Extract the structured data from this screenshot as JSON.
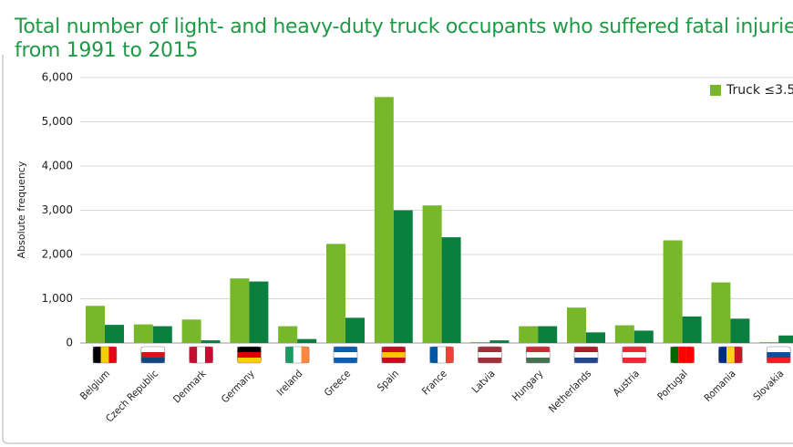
{
  "chart_data": {
    "type": "bar",
    "title": [
      "Total number of light- and heavy-duty truck occupants who suffered fatal injuries in E",
      "from 1991 to 2015"
    ],
    "y_label": "Absolute frequency",
    "categories": [
      "Belgium",
      "Czech Republic",
      "Denmark",
      "Germany",
      "Ireland",
      "Greece",
      "Spain",
      "France",
      "Latvia",
      "Hungary",
      "Netherlands",
      "Austria",
      "Portugal",
      "Romania",
      "Slovakia"
    ],
    "series": [
      {
        "name": "Truck ≤3.5",
        "color": "#76b82a",
        "values": [
          840,
          420,
          530,
          1460,
          380,
          2240,
          5560,
          3110,
          20,
          380,
          800,
          400,
          2320,
          1370,
          20
        ]
      },
      {
        "color": "#0b7f3d",
        "values": [
          410,
          380,
          60,
          1390,
          90,
          570,
          3000,
          2390,
          60,
          380,
          240,
          280,
          600,
          550,
          170
        ]
      }
    ],
    "ylim": [
      0,
      6000
    ],
    "yticks": [
      0,
      {
        "value": 1000,
        "label": "1,000"
      },
      {
        "value": 2000,
        "label": "2,000"
      },
      {
        "value": 3000,
        "label": "3,000"
      },
      {
        "value": 4000,
        "label": "4,000"
      },
      {
        "value": 5000,
        "label": "5,000"
      },
      {
        "value": 6000,
        "label": "6,000"
      }
    ],
    "grid": true,
    "legend": "top-right"
  }
}
